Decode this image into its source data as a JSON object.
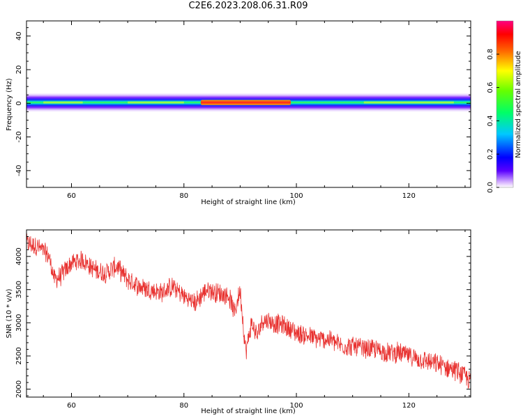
{
  "title": "C2E6.2023.208.06.31.R09",
  "chart_data": [
    {
      "type": "heatmap",
      "xlabel": "Height of straight line (km)",
      "ylabel": "Frequency (Hz)",
      "xlim": [
        52,
        131
      ],
      "ylim": [
        -50,
        49
      ],
      "xticks": [
        60,
        80,
        100,
        120
      ],
      "yticks": [
        -40,
        -20,
        0,
        20,
        40
      ],
      "colorbar": {
        "label": "Normalized spectral amplitude",
        "ticks": [
          0.0,
          0.2,
          0.4,
          0.6,
          0.8
        ],
        "range": [
          0,
          1
        ]
      },
      "band": {
        "center_hz": 0.5,
        "core_halfwidth_hz": 1.5,
        "halo_halfwidth_hz": 4.5,
        "note": "peak amplitude ~0.9 between 83 and 99 km"
      }
    },
    {
      "type": "line",
      "xlabel": "Height of straight line (km)",
      "ylabel": "SNR (10 * v/v)",
      "xlim": [
        52,
        131
      ],
      "ylim": [
        1880,
        4400
      ],
      "xticks": [
        60,
        80,
        100,
        120
      ],
      "yticks": [
        2000,
        2500,
        3000,
        3500,
        4000
      ],
      "color": "#e8312f",
      "series": [
        {
          "name": "",
          "x": [
            52,
            54,
            56,
            57,
            58,
            60,
            62,
            64,
            66,
            68,
            70,
            72,
            74,
            76,
            78,
            80,
            82,
            84,
            86,
            88,
            89,
            90,
            91,
            92,
            93,
            94,
            96,
            98,
            100,
            102,
            104,
            106,
            108,
            110,
            112,
            114,
            116,
            118,
            120,
            122,
            124,
            126,
            128,
            130,
            131
          ],
          "y": [
            4200,
            4150,
            4000,
            3650,
            3700,
            3900,
            3950,
            3800,
            3750,
            3850,
            3650,
            3550,
            3500,
            3450,
            3550,
            3400,
            3300,
            3500,
            3450,
            3400,
            3150,
            3500,
            2550,
            3000,
            2800,
            3050,
            3000,
            2950,
            2850,
            2800,
            2750,
            2750,
            2650,
            2650,
            2600,
            2600,
            2550,
            2550,
            2500,
            2450,
            2400,
            2350,
            2300,
            2200,
            2100
          ]
        }
      ]
    }
  ]
}
